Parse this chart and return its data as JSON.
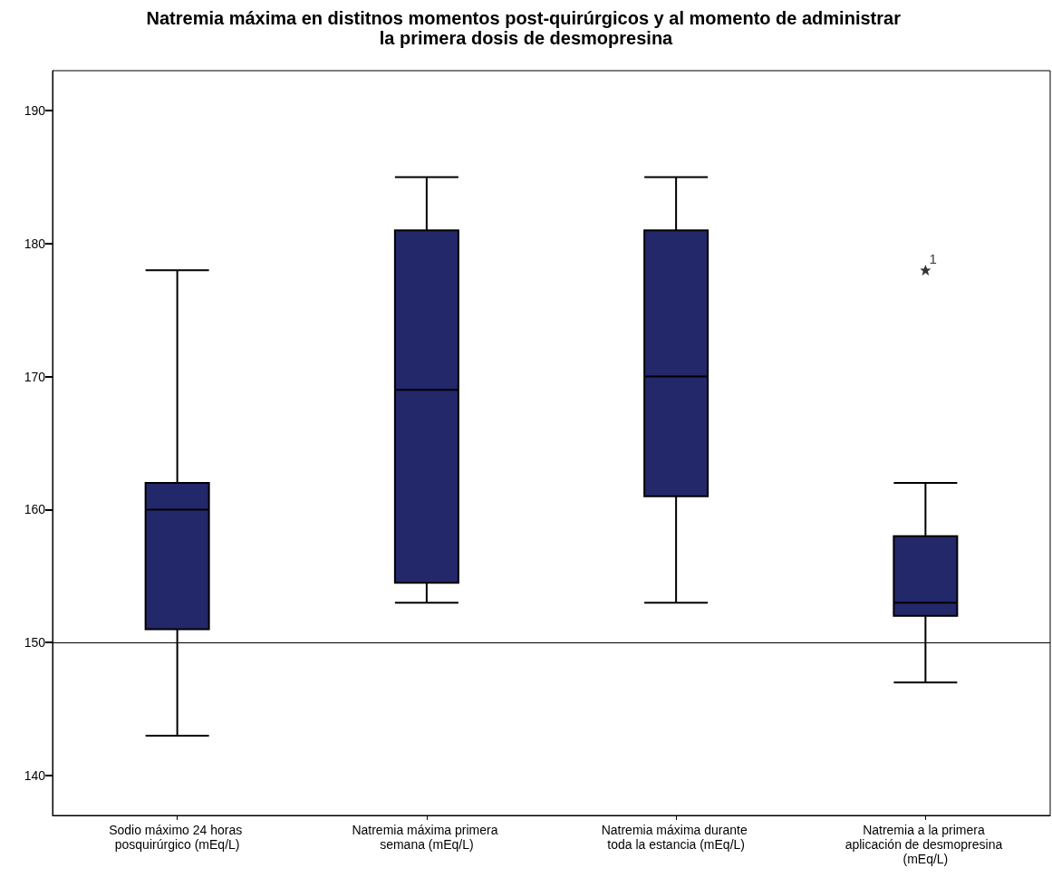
{
  "chart_data": {
    "type": "box",
    "title": "Natremia máxima en distitnos momentos post-quirúrgicos y al momento de administrar la primera dosis de desmopresina",
    "categories": [
      "Sodio máximo 24 horas posquirúrgico (mEq/L)",
      "Natremia máxima primera semana (mEq/L)",
      "Natremia máxima durante toda la estancia (mEq/L)",
      "Natremia a la primera aplicación de desmopresina (mEq/L)"
    ],
    "boxes": [
      {
        "low": 143,
        "q1": 151,
        "median": 160,
        "q3": 162,
        "high": 178
      },
      {
        "low": 153,
        "q1": 154.5,
        "median": 169,
        "q3": 181,
        "high": 185
      },
      {
        "low": 153,
        "q1": 161,
        "median": 170,
        "q3": 181,
        "high": 185
      },
      {
        "low": 147,
        "q1": 152,
        "median": 153,
        "q3": 158,
        "high": 162,
        "outliers": [
          178
        ]
      }
    ],
    "color": "#23286b",
    "marker": "star",
    "ylim": [
      137,
      193
    ],
    "yticks": [
      140,
      150,
      160,
      170,
      180,
      190
    ],
    "ref_lines": [
      {
        "axis": "y",
        "value": 150,
        "color": "#000000"
      }
    ],
    "annotations": [
      "1"
    ],
    "grid": false
  }
}
